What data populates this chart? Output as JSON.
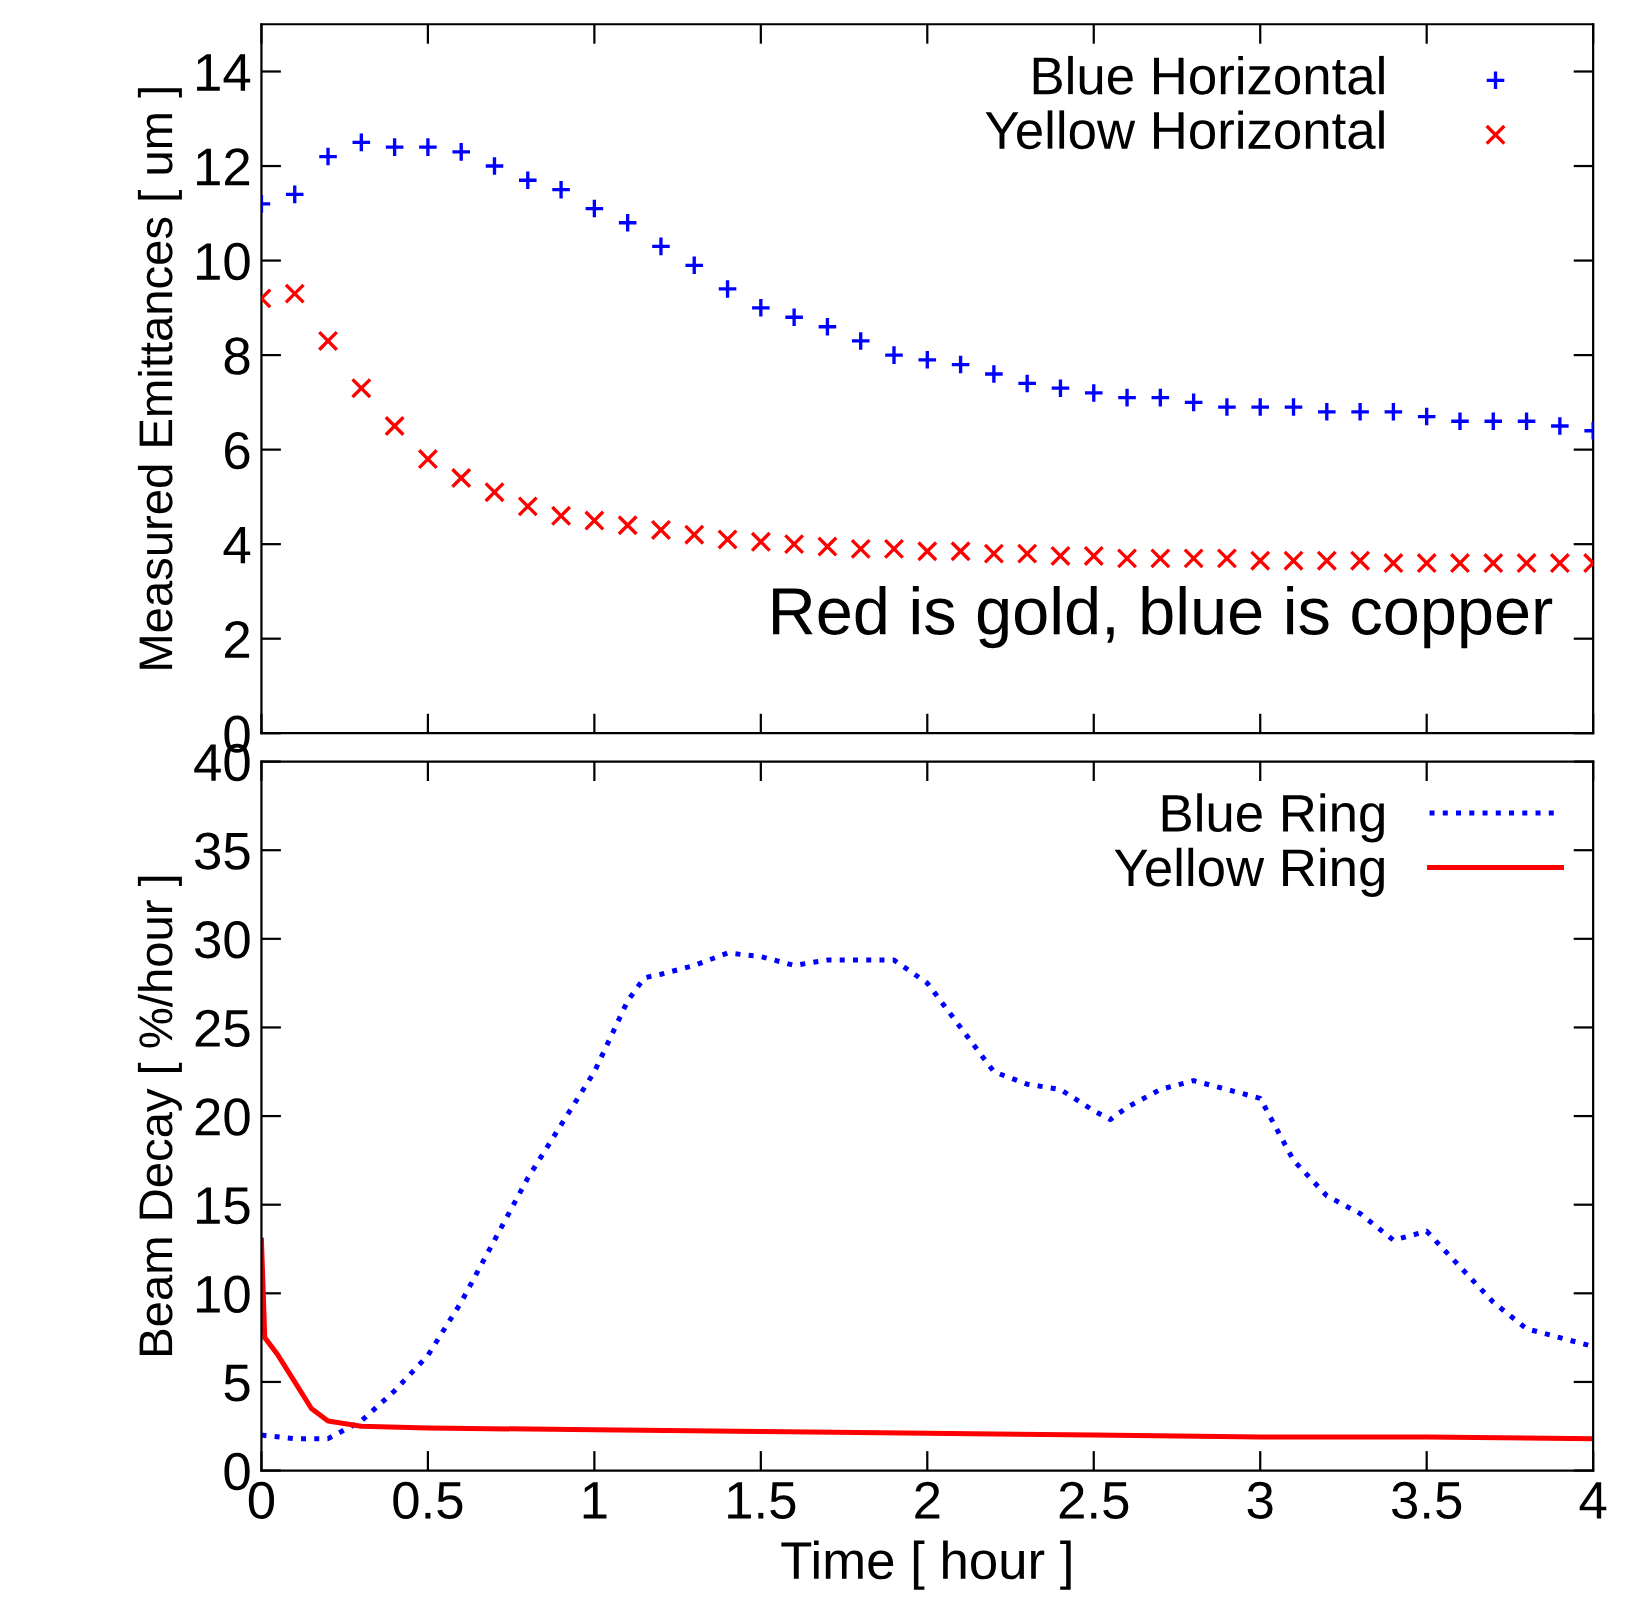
{
  "chart_data": [
    {
      "type": "scatter",
      "ylabel": "Measured Emittances [ um ]",
      "xlim": [
        0,
        4
      ],
      "xticks": [
        0,
        0.5,
        1,
        1.5,
        2,
        2.5,
        3,
        3.5,
        4
      ],
      "ylim": [
        0,
        15
      ],
      "yticks": [
        0,
        2,
        4,
        6,
        8,
        10,
        12,
        14
      ],
      "tick_labels": "y",
      "grid": false,
      "legend": "top right",
      "annotations": [
        "Red is gold, blue is copper"
      ],
      "x": [
        0,
        0.1,
        0.2,
        0.3,
        0.4,
        0.5,
        0.6,
        0.7,
        0.8,
        0.9,
        1.0,
        1.1,
        1.2,
        1.3,
        1.4,
        1.5,
        1.6,
        1.7,
        1.8,
        1.9,
        2.0,
        2.1,
        2.2,
        2.3,
        2.4,
        2.5,
        2.6,
        2.7,
        2.8,
        2.9,
        3.0,
        3.1,
        3.2,
        3.3,
        3.4,
        3.5,
        3.6,
        3.7,
        3.8,
        3.9,
        4.0
      ],
      "series": [
        {
          "name": "Blue Horizontal",
          "color": "#0000ff",
          "marker": "plus",
          "values": [
            11.2,
            11.4,
            12.2,
            12.5,
            12.4,
            12.4,
            12.3,
            12.0,
            11.7,
            11.5,
            11.1,
            10.8,
            10.3,
            9.9,
            9.4,
            9.0,
            8.8,
            8.6,
            8.3,
            8.0,
            7.9,
            7.8,
            7.6,
            7.4,
            7.3,
            7.2,
            7.1,
            7.1,
            7.0,
            6.9,
            6.9,
            6.9,
            6.8,
            6.8,
            6.8,
            6.7,
            6.6,
            6.6,
            6.6,
            6.5,
            6.4
          ]
        },
        {
          "name": "Yellow Horizontal",
          "color": "#ff0000",
          "marker": "cross",
          "values": [
            9.2,
            9.3,
            8.3,
            7.3,
            6.5,
            5.8,
            5.4,
            5.1,
            4.8,
            4.6,
            4.5,
            4.4,
            4.3,
            4.2,
            4.1,
            4.05,
            4.0,
            3.95,
            3.9,
            3.9,
            3.85,
            3.85,
            3.8,
            3.8,
            3.75,
            3.75,
            3.7,
            3.7,
            3.7,
            3.7,
            3.65,
            3.65,
            3.65,
            3.65,
            3.6,
            3.6,
            3.6,
            3.6,
            3.6,
            3.6,
            3.6
          ]
        }
      ]
    },
    {
      "type": "line",
      "xlabel": "Time [ hour ]",
      "ylabel": "Beam Decay [ %/hour ]",
      "xlim": [
        0,
        4
      ],
      "xticks": [
        0,
        0.5,
        1,
        1.5,
        2,
        2.5,
        3,
        3.5,
        4
      ],
      "ylim": [
        0,
        40
      ],
      "yticks": [
        0,
        5,
        10,
        15,
        20,
        25,
        30,
        35,
        40
      ],
      "grid": false,
      "legend": "top right",
      "series": [
        {
          "name": "Blue Ring",
          "color": "#0000ff",
          "line_style": "dotted",
          "x": [
            0,
            0.1,
            0.2,
            0.3,
            0.4,
            0.5,
            0.6,
            0.7,
            0.8,
            0.9,
            1.0,
            1.1,
            1.15,
            1.2,
            1.3,
            1.4,
            1.5,
            1.6,
            1.7,
            1.8,
            1.9,
            2.0,
            2.1,
            2.2,
            2.3,
            2.4,
            2.5,
            2.55,
            2.6,
            2.7,
            2.8,
            2.9,
            3.0,
            3.1,
            3.2,
            3.3,
            3.4,
            3.5,
            3.6,
            3.7,
            3.8,
            3.9,
            4.0
          ],
          "values": [
            2,
            1.8,
            1.8,
            2.8,
            4.5,
            6.5,
            9.5,
            13,
            16.5,
            19.5,
            22.5,
            26.5,
            27.8,
            28,
            28.5,
            29.2,
            29,
            28.5,
            28.8,
            28.8,
            28.8,
            27.5,
            25,
            22.5,
            21.8,
            21.5,
            20.3,
            19.8,
            20.5,
            21.5,
            22,
            21.5,
            21,
            17.5,
            15.5,
            14.5,
            13,
            13.5,
            11.5,
            9.5,
            8,
            7.5,
            7
          ]
        },
        {
          "name": "Yellow Ring",
          "color": "#ff0000",
          "line_style": "solid",
          "x": [
            0,
            0.01,
            0.05,
            0.1,
            0.15,
            0.2,
            0.3,
            0.5,
            1,
            1.5,
            2,
            2.5,
            3,
            3.5,
            4
          ],
          "values": [
            13,
            7.5,
            6.5,
            5,
            3.5,
            2.8,
            2.5,
            2.4,
            2.3,
            2.2,
            2.1,
            2.0,
            1.9,
            1.9,
            1.8
          ]
        }
      ]
    }
  ]
}
